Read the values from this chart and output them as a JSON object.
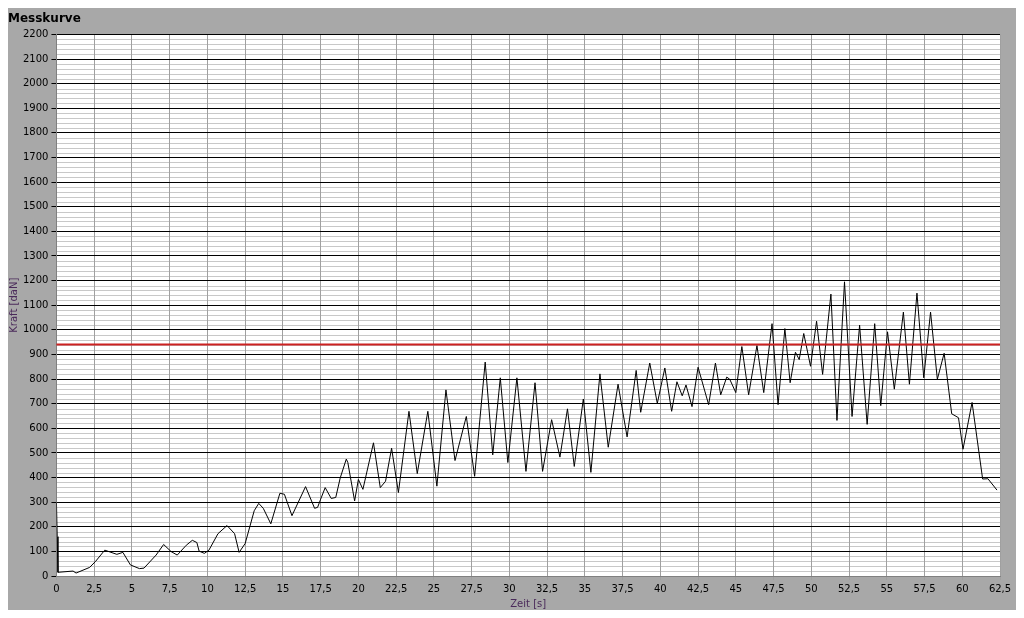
{
  "chart_data": {
    "type": "line",
    "title": "Messkurve",
    "xlabel": "Zeit [s]",
    "ylabel": "Kraft [daN]",
    "x": [
      0,
      0.05,
      0.1,
      1.1,
      1.3,
      2.2,
      2.6,
      3.2,
      4.0,
      4.4,
      4.9,
      5.5,
      5.8,
      6.6,
      7.1,
      7.6,
      8.0,
      8.6,
      9.0,
      9.3,
      9.45,
      9.8,
      10.1,
      10.7,
      11.3,
      11.8,
      12.1,
      12.5,
      13.1,
      13.4,
      13.7,
      14.2,
      14.8,
      15.1,
      15.6,
      16.5,
      17.1,
      17.3,
      17.5,
      17.8,
      18.2,
      18.5,
      18.8,
      19.2,
      19.3,
      19.75,
      20.0,
      20.3,
      21.0,
      21.45,
      21.8,
      22.2,
      22.65,
      23.35,
      23.9,
      24.6,
      25.2,
      25.8,
      26.4,
      27.15,
      27.7,
      28.4,
      28.9,
      29.4,
      29.9,
      30.5,
      31.1,
      31.7,
      32.2,
      32.8,
      33.35,
      33.85,
      34.3,
      34.9,
      35.4,
      36.0,
      36.55,
      37.2,
      37.8,
      38.4,
      38.7,
      39.3,
      39.8,
      40.3,
      40.75,
      41.1,
      41.45,
      41.7,
      42.1,
      42.5,
      43.2,
      43.65,
      44.0,
      44.4,
      44.6,
      45.0,
      45.4,
      45.85,
      46.4,
      46.85,
      47.4,
      47.8,
      48.25,
      48.6,
      48.95,
      49.2,
      49.5,
      49.95,
      50.35,
      50.75,
      51.3,
      51.7,
      52.2,
      52.7,
      53.2,
      53.7,
      54.2,
      54.6,
      55.05,
      55.5,
      56.1,
      56.5,
      57.0,
      57.45,
      57.9,
      58.35,
      58.8,
      59.3,
      59.75,
      60.05,
      60.65,
      61.35,
      61.7,
      62.3
    ],
    "series": [
      {
        "color": "#000000",
        "values": [
          300,
          160,
          15,
          20,
          12,
          35,
          60,
          105,
          88,
          96,
          45,
          30,
          32,
          85,
          128,
          99,
          85,
          125,
          145,
          136,
          101,
          92,
          105,
          172,
          205,
          172,
          96,
          132,
          265,
          295,
          275,
          212,
          336,
          332,
          245,
          363,
          275,
          279,
          312,
          359,
          315,
          319,
          399,
          475,
          461,
          305,
          392,
          352,
          541,
          359,
          385,
          519,
          339,
          669,
          416,
          669,
          365,
          756,
          469,
          648,
          405,
          869,
          492,
          805,
          461,
          805,
          425,
          785,
          425,
          635,
          483,
          679,
          445,
          719,
          421,
          821,
          523,
          779,
          565,
          835,
          665,
          865,
          701,
          845,
          669,
          789,
          732,
          776,
          688,
          848,
          696,
          865,
          736,
          808,
          799,
          745,
          932,
          736,
          936,
          745,
          1025,
          696,
          1005,
          785,
          909,
          879,
          985,
          852,
          1035,
          819,
          1145,
          632,
          1195,
          648,
          1019,
          616,
          1025,
          692,
          992,
          759,
          1072,
          779,
          1149,
          805,
          1072,
          799,
          905,
          659,
          643,
          515,
          705,
          394,
          395,
          349
        ]
      }
    ],
    "xlim": [
      0,
      62.5
    ],
    "xticks": [
      0,
      {
        "value": 2.5,
        "label": "2,5"
      },
      5,
      {
        "value": 7.5,
        "label": "7,5"
      },
      10,
      {
        "value": 12.5,
        "label": "12,5"
      },
      15,
      {
        "value": 17.5,
        "label": "17,5"
      },
      20,
      {
        "value": 22.5,
        "label": "22,5"
      },
      25,
      {
        "value": 27.5,
        "label": "27,5"
      },
      30,
      {
        "value": 32.5,
        "label": "32,5"
      },
      35,
      {
        "value": 37.5,
        "label": "37,5"
      },
      40,
      {
        "value": 42.5,
        "label": "42,5"
      },
      45,
      {
        "value": 47.5,
        "label": "47,5"
      },
      50,
      {
        "value": 52.5,
        "label": "52,5"
      },
      55,
      {
        "value": 57.5,
        "label": "57,5"
      },
      60,
      {
        "value": 62.5,
        "label": "62,5"
      }
    ],
    "ylim": [
      0,
      2200
    ],
    "yticks": [
      0,
      100,
      200,
      300,
      400,
      500,
      600,
      700,
      800,
      900,
      1000,
      1100,
      1200,
      1300,
      1400,
      1500,
      1600,
      1700,
      1800,
      1900,
      2000,
      2100,
      2200
    ],
    "ref_lines": [
      {
        "axis": "y",
        "value": 940,
        "color": "#cc2020"
      }
    ],
    "grid": true,
    "legend": false,
    "marker": "none",
    "line_style": "solid"
  }
}
